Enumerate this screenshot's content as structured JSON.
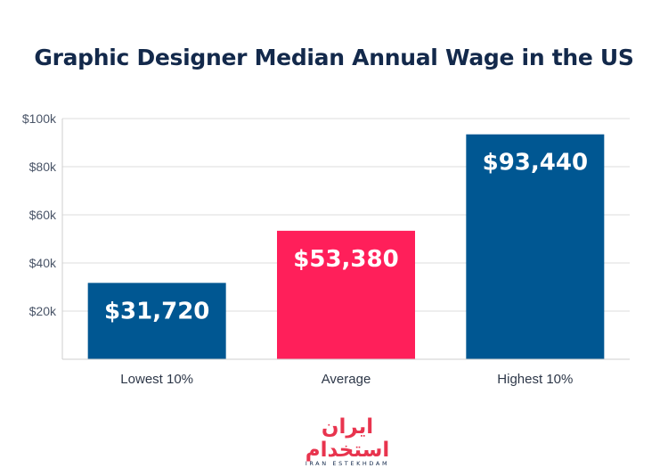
{
  "chart_data": {
    "type": "bar",
    "title": "Graphic Designer Median Annual Wage in the US",
    "categories": [
      "Lowest 10%",
      "Average",
      "Highest 10%"
    ],
    "values": [
      31720,
      53380,
      93440
    ],
    "value_labels": [
      "$31,720",
      "$53,380",
      "$93,440"
    ],
    "bar_colors": [
      "#005792",
      "#ff1f5a",
      "#005792"
    ],
    "ylim": [
      0,
      100000
    ],
    "yticks": [
      20000,
      40000,
      60000,
      80000,
      100000
    ],
    "ytick_labels": [
      "$20k",
      "$40k",
      "$60k",
      "$80k",
      "$100k"
    ],
    "xlabel": "",
    "ylabel": "",
    "grid": true
  },
  "logo": {
    "mark": "ایران استخدام",
    "subtitle": "IRAN ESTEKHDAM"
  }
}
